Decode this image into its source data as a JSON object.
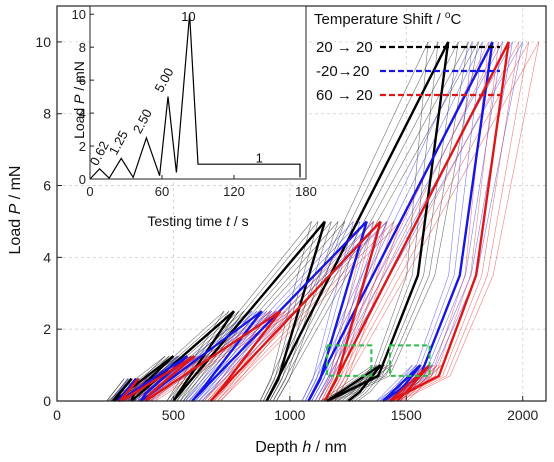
{
  "chart_data": [
    {
      "type": "line",
      "title": "",
      "xlabel": "Depth h / nm",
      "ylabel": "Load P / mN",
      "xlim": [
        0,
        2100
      ],
      "ylim": [
        0,
        11
      ],
      "xticks": [
        0,
        500,
        1000,
        1500,
        2000
      ],
      "yticks": [
        0,
        2,
        4,
        6,
        8,
        10
      ],
      "grid": true,
      "legend": {
        "title": "Temperature Shift / oC",
        "placement": "top-right",
        "entries": [
          {
            "label": "20 → 20",
            "color": "#000000",
            "style": "dashed"
          },
          {
            "label": "-20→20",
            "color": "#1515e6",
            "style": "dashed"
          },
          {
            "label": "60 → 20",
            "color": "#e01515",
            "style": "dashed"
          }
        ]
      },
      "series": [
        {
          "name": "20 → 20",
          "color": "#000000",
          "cycles": [
            {
              "load": [
                [
                  240,
                  0
                ],
                [
                  320,
                  0.62
                ]
              ],
              "unload": [
                [
                  320,
                  0.62
                ],
                [
                  255,
                  0.1
                ],
                [
                  245,
                  0
                ]
              ]
            },
            {
              "load": [
                [
                  245,
                  0
                ],
                [
                  500,
                  1.25
                ]
              ],
              "unload": [
                [
                  500,
                  1.25
                ],
                [
                  330,
                  0.2
                ],
                [
                  320,
                  0
                ]
              ]
            },
            {
              "load": [
                [
                  320,
                  0
                ],
                [
                  760,
                  2.5
                ]
              ],
              "unload": [
                [
                  760,
                  2.5
                ],
                [
                  530,
                  0.3
                ],
                [
                  500,
                  0
                ]
              ]
            },
            {
              "load": [
                [
                  500,
                  0
                ],
                [
                  1150,
                  5.0
                ]
              ],
              "unload": [
                [
                  1150,
                  5.0
                ],
                [
                  950,
                  0.6
                ],
                [
                  900,
                  0
                ]
              ]
            },
            {
              "load": [
                [
                  900,
                  0
                ],
                [
                  1680,
                  10.0
                ]
              ],
              "unload": [
                [
                  1680,
                  10.0
                ],
                [
                  1550,
                  3.5
                ],
                [
                  1380,
                  0.7
                ],
                [
                  1160,
                  0
                ]
              ]
            },
            {
              "load": [
                [
                  1160,
                  0
                ],
                [
                  1390,
                  1.0
                ]
              ],
              "unload": [
                [
                  1390,
                  1.0
                ],
                [
                  1300,
                  0.25
                ],
                [
                  1250,
                  0
                ]
              ]
            }
          ]
        },
        {
          "name": "-20→20",
          "color": "#1515e6",
          "cycles": [
            {
              "load": [
                [
                  260,
                  0
                ],
                [
                  340,
                  0.62
                ]
              ],
              "unload": [
                [
                  340,
                  0.62
                ],
                [
                  275,
                  0.1
                ],
                [
                  265,
                  0
                ]
              ]
            },
            {
              "load": [
                [
                  265,
                  0
                ],
                [
                  560,
                  1.25
                ]
              ],
              "unload": [
                [
                  560,
                  1.25
                ],
                [
                  380,
                  0.2
                ],
                [
                  360,
                  0
                ]
              ]
            },
            {
              "load": [
                [
                  360,
                  0
                ],
                [
                  880,
                  2.5
                ]
              ],
              "unload": [
                [
                  880,
                  2.5
                ],
                [
                  620,
                  0.3
                ],
                [
                  580,
                  0
                ]
              ]
            },
            {
              "load": [
                [
                  580,
                  0
                ],
                [
                  1330,
                  5.0
                ]
              ],
              "unload": [
                [
                  1330,
                  5.0
                ],
                [
                  1130,
                  0.6
                ],
                [
                  1080,
                  0
                ]
              ]
            },
            {
              "load": [
                [
                  1080,
                  0
                ],
                [
                  1870,
                  10.0
                ]
              ],
              "unload": [
                [
                  1870,
                  10.0
                ],
                [
                  1730,
                  3.5
                ],
                [
                  1560,
                  0.7
                ],
                [
                  1400,
                  0
                ]
              ]
            },
            {
              "load": [
                [
                  1400,
                  0
                ],
                [
                  1560,
                  1.0
                ]
              ],
              "unload": [
                [
                  1560,
                  1.0
                ],
                [
                  1470,
                  0.25
                ],
                [
                  1430,
                  0
                ]
              ]
            }
          ]
        },
        {
          "name": "60 → 20",
          "color": "#e01515",
          "cycles": [
            {
              "load": [
                [
                  270,
                  0
                ],
                [
                  350,
                  0.62
                ]
              ],
              "unload": [
                [
                  350,
                  0.62
                ],
                [
                  285,
                  0.1
                ],
                [
                  275,
                  0
                ]
              ]
            },
            {
              "load": [
                [
                  275,
                  0
                ],
                [
                  590,
                  1.25
                ]
              ],
              "unload": [
                [
                  590,
                  1.25
                ],
                [
                  400,
                  0.2
                ],
                [
                  380,
                  0
                ]
              ]
            },
            {
              "load": [
                [
                  380,
                  0
                ],
                [
                  960,
                  2.5
                ]
              ],
              "unload": [
                [
                  960,
                  2.5
                ],
                [
                  700,
                  0.3
                ],
                [
                  660,
                  0
                ]
              ]
            },
            {
              "load": [
                [
                  660,
                  0
                ],
                [
                  1390,
                  5.0
                ]
              ],
              "unload": [
                [
                  1390,
                  5.0
                ],
                [
                  1200,
                  0.6
                ],
                [
                  1150,
                  0
                ]
              ]
            },
            {
              "load": [
                [
                  1150,
                  0
                ],
                [
                  1940,
                  10.0
                ]
              ],
              "unload": [
                [
                  1940,
                  10.0
                ],
                [
                  1800,
                  3.5
                ],
                [
                  1640,
                  0.7
                ],
                [
                  1430,
                  0
                ]
              ]
            },
            {
              "load": [
                [
                  1430,
                  0
                ],
                [
                  1600,
                  1.0
                ]
              ],
              "unload": [
                [
                  1600,
                  1.0
                ],
                [
                  1500,
                  0.25
                ],
                [
                  1460,
                  0
                ]
              ]
            }
          ]
        }
      ],
      "highlight_boxes": [
        {
          "x": [
            1160,
            1350
          ],
          "y": [
            0.7,
            1.55
          ],
          "color": "#2ebd4a",
          "style": "dashed"
        },
        {
          "x": [
            1430,
            1600
          ],
          "y": [
            0.7,
            1.55
          ],
          "color": "#2ebd4a",
          "style": "dashed"
        }
      ]
    },
    {
      "type": "line",
      "title": "",
      "xlabel": "Testing time t / s",
      "ylabel": "Load P / mN",
      "xlim": [
        0,
        180
      ],
      "ylim": [
        0,
        10.5
      ],
      "xticks": [
        0,
        60,
        120,
        180
      ],
      "yticks": [
        0,
        2,
        4,
        6,
        8,
        10
      ],
      "series": [
        {
          "name": "",
          "color": "#000000",
          "x": [
            0,
            8,
            16,
            26,
            36,
            47,
            58,
            65,
            72,
            83,
            90,
            175,
            175
          ],
          "y": [
            0,
            0.62,
            0.05,
            1.25,
            0.1,
            2.5,
            0.2,
            5.0,
            0.4,
            10.0,
            0.9,
            0.9,
            0.1
          ]
        }
      ],
      "annotations": [
        {
          "text": "0.62",
          "x": 6,
          "y": 0.75
        },
        {
          "text": "1.25",
          "x": 22,
          "y": 1.4
        },
        {
          "text": "2.50",
          "x": 42,
          "y": 2.7
        },
        {
          "text": "5.00",
          "x": 60,
          "y": 5.2
        },
        {
          "text": "10",
          "x": 76,
          "y": 9.6
        },
        {
          "text": "1",
          "x": 138,
          "y": 1.0
        }
      ]
    }
  ],
  "labels": {
    "main_x_prefix": "Depth ",
    "main_x_var": "h",
    "main_x_suffix": " / nm",
    "main_y_prefix": "Load ",
    "main_y_var": "P",
    "main_y_suffix": " / mN",
    "inset_x_prefix": "Testing time ",
    "inset_x_var": "t",
    "inset_x_suffix": " / s",
    "inset_y_prefix": "Load ",
    "inset_y_var": "P",
    "inset_y_suffix": " / mN",
    "legend_title": "Temperature Shift / ",
    "legend_title_sup": "o",
    "legend_title_end": "C"
  }
}
